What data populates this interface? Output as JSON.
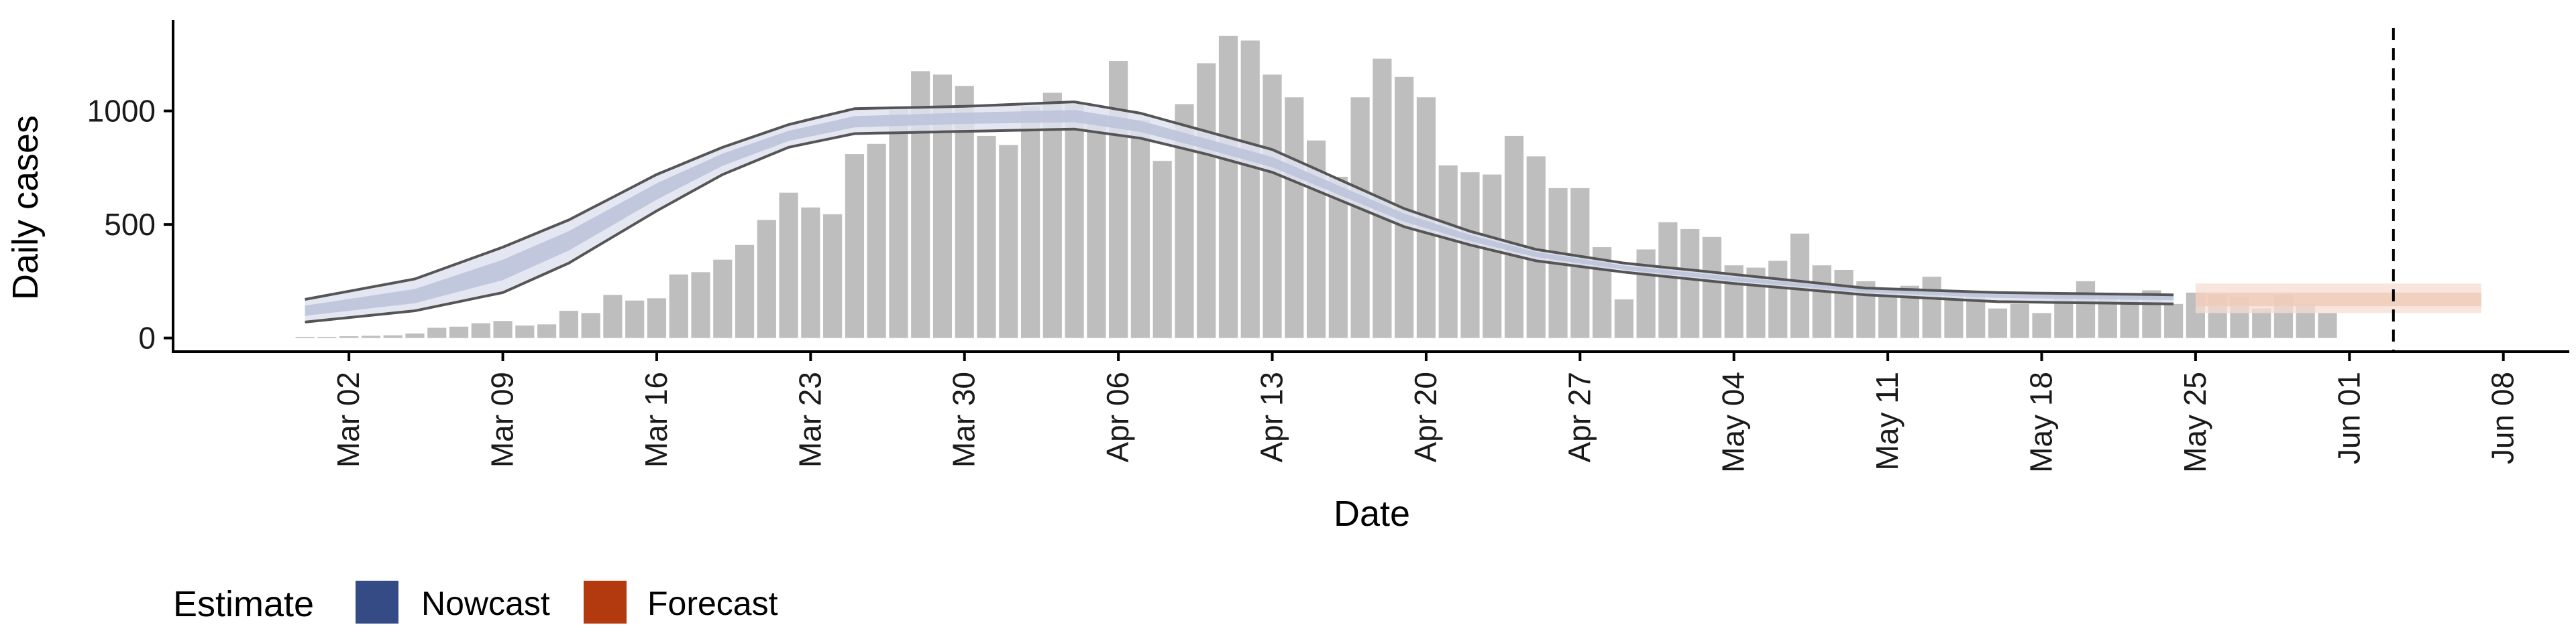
{
  "chart_data": {
    "type": "bar",
    "xlabel": "Date",
    "ylabel": "Daily cases",
    "yticks": [
      0,
      500,
      1000
    ],
    "xticks": [
      "Mar 02",
      "Mar 09",
      "Mar 16",
      "Mar 23",
      "Mar 30",
      "Apr 06",
      "Apr 13",
      "Apr 20",
      "Apr 27",
      "May 04",
      "May 11",
      "May 18",
      "May 25",
      "Jun 01",
      "Jun 08"
    ],
    "ylim": [
      -60,
      1400
    ],
    "xlim": [
      "2020-02-23",
      "2020-06-11"
    ],
    "bar_start_date": "2020-02-29",
    "bar_values": [
      5,
      5,
      8,
      10,
      12,
      20,
      45,
      50,
      65,
      75,
      55,
      60,
      120,
      110,
      190,
      165,
      175,
      280,
      290,
      345,
      410,
      520,
      640,
      575,
      545,
      810,
      855,
      1020,
      1175,
      1160,
      1110,
      890,
      850,
      1020,
      1080,
      1030,
      960,
      1220,
      960,
      780,
      1030,
      1210,
      1330,
      1310,
      1160,
      1060,
      870,
      710,
      1060,
      1230,
      1150,
      1060,
      760,
      730,
      720,
      890,
      800,
      660,
      660,
      400,
      170,
      390,
      510,
      480,
      445,
      320,
      310,
      340,
      460,
      320,
      300,
      250,
      200,
      230,
      270,
      210,
      200,
      130,
      150,
      110,
      200,
      250,
      200,
      180,
      210,
      150,
      200,
      190,
      180,
      130,
      190,
      150,
      110
    ],
    "nowcast_start_date": "2020-02-29",
    "nowcast_end_date": "2020-05-24",
    "forecast_start_date": "2020-05-25",
    "forecast_end_date": "2020-06-07",
    "nowcast_center_keypoints": [
      [
        "2020-02-29",
        120
      ],
      [
        "2020-03-05",
        180
      ],
      [
        "2020-03-09",
        300
      ],
      [
        "2020-03-12",
        430
      ],
      [
        "2020-03-16",
        650
      ],
      [
        "2020-03-19",
        790
      ],
      [
        "2020-03-22",
        890
      ],
      [
        "2020-03-25",
        950
      ],
      [
        "2020-03-30",
        970
      ],
      [
        "2020-04-04",
        975
      ],
      [
        "2020-04-07",
        930
      ],
      [
        "2020-04-10",
        850
      ],
      [
        "2020-04-13",
        770
      ],
      [
        "2020-04-16",
        650
      ],
      [
        "2020-04-19",
        530
      ],
      [
        "2020-04-22",
        440
      ],
      [
        "2020-04-25",
        370
      ],
      [
        "2020-04-29",
        310
      ],
      [
        "2020-05-04",
        260
      ],
      [
        "2020-05-10",
        210
      ],
      [
        "2020-05-16",
        190
      ],
      [
        "2020-05-24",
        180
      ]
    ],
    "nowcast_upper_keypoints": [
      [
        "2020-02-29",
        170
      ],
      [
        "2020-03-05",
        260
      ],
      [
        "2020-03-09",
        400
      ],
      [
        "2020-03-12",
        520
      ],
      [
        "2020-03-16",
        720
      ],
      [
        "2020-03-19",
        840
      ],
      [
        "2020-03-22",
        940
      ],
      [
        "2020-03-25",
        1010
      ],
      [
        "2020-03-30",
        1020
      ],
      [
        "2020-04-04",
        1040
      ],
      [
        "2020-04-07",
        990
      ],
      [
        "2020-04-10",
        910
      ],
      [
        "2020-04-13",
        830
      ],
      [
        "2020-04-16",
        700
      ],
      [
        "2020-04-19",
        570
      ],
      [
        "2020-04-22",
        470
      ],
      [
        "2020-04-25",
        390
      ],
      [
        "2020-04-29",
        330
      ],
      [
        "2020-05-04",
        280
      ],
      [
        "2020-05-10",
        220
      ],
      [
        "2020-05-16",
        200
      ],
      [
        "2020-05-24",
        190
      ]
    ],
    "nowcast_lower_keypoints": [
      [
        "2020-02-29",
        70
      ],
      [
        "2020-03-05",
        120
      ],
      [
        "2020-03-09",
        200
      ],
      [
        "2020-03-12",
        330
      ],
      [
        "2020-03-16",
        560
      ],
      [
        "2020-03-19",
        720
      ],
      [
        "2020-03-22",
        840
      ],
      [
        "2020-03-25",
        900
      ],
      [
        "2020-03-30",
        910
      ],
      [
        "2020-04-04",
        920
      ],
      [
        "2020-04-07",
        880
      ],
      [
        "2020-04-10",
        810
      ],
      [
        "2020-04-13",
        730
      ],
      [
        "2020-04-16",
        610
      ],
      [
        "2020-04-19",
        490
      ],
      [
        "2020-04-22",
        410
      ],
      [
        "2020-04-25",
        340
      ],
      [
        "2020-04-29",
        290
      ],
      [
        "2020-05-04",
        240
      ],
      [
        "2020-05-10",
        190
      ],
      [
        "2020-05-16",
        160
      ],
      [
        "2020-05-24",
        150
      ]
    ],
    "forecast_center": 170,
    "forecast_inner": [
      140,
      200
    ],
    "forecast_outer": [
      110,
      240
    ],
    "vline_date": "2020-06-03",
    "legend": {
      "title": "Estimate",
      "position": "bottom-left",
      "items": [
        {
          "label": "Nowcast",
          "color": "#344b85"
        },
        {
          "label": "Forecast",
          "color": "#b33a0e"
        }
      ]
    },
    "colors": {
      "bar": "#bebebe",
      "nowcast_band_outer": "#dfe3ef",
      "nowcast_band_inner": "#bcc4dc",
      "forecast_band_outer": "#f6ddd3",
      "forecast_band_inner": "#efc8b6",
      "bound_line": "#555555",
      "axis": "#000000"
    }
  }
}
